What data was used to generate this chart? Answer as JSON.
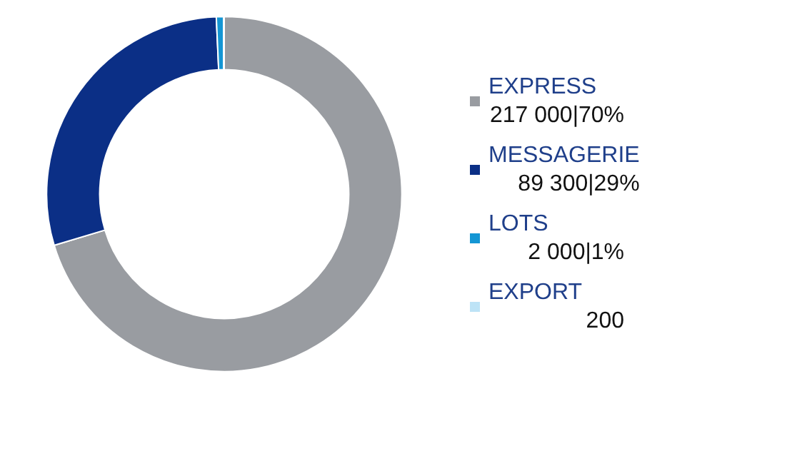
{
  "chart_data": {
    "type": "donut",
    "categories": [
      "EXPRESS",
      "MESSAGERIE",
      "LOTS",
      "EXPORT"
    ],
    "values": [
      217000,
      89300,
      2000,
      200
    ],
    "colors": [
      "#999ca1",
      "#0b2f86",
      "#1496d4",
      "#bde3f6"
    ],
    "value_labels": [
      "217 000|70%",
      "89 300|29%",
      "2 000|1%",
      "200"
    ],
    "legend": "right"
  }
}
